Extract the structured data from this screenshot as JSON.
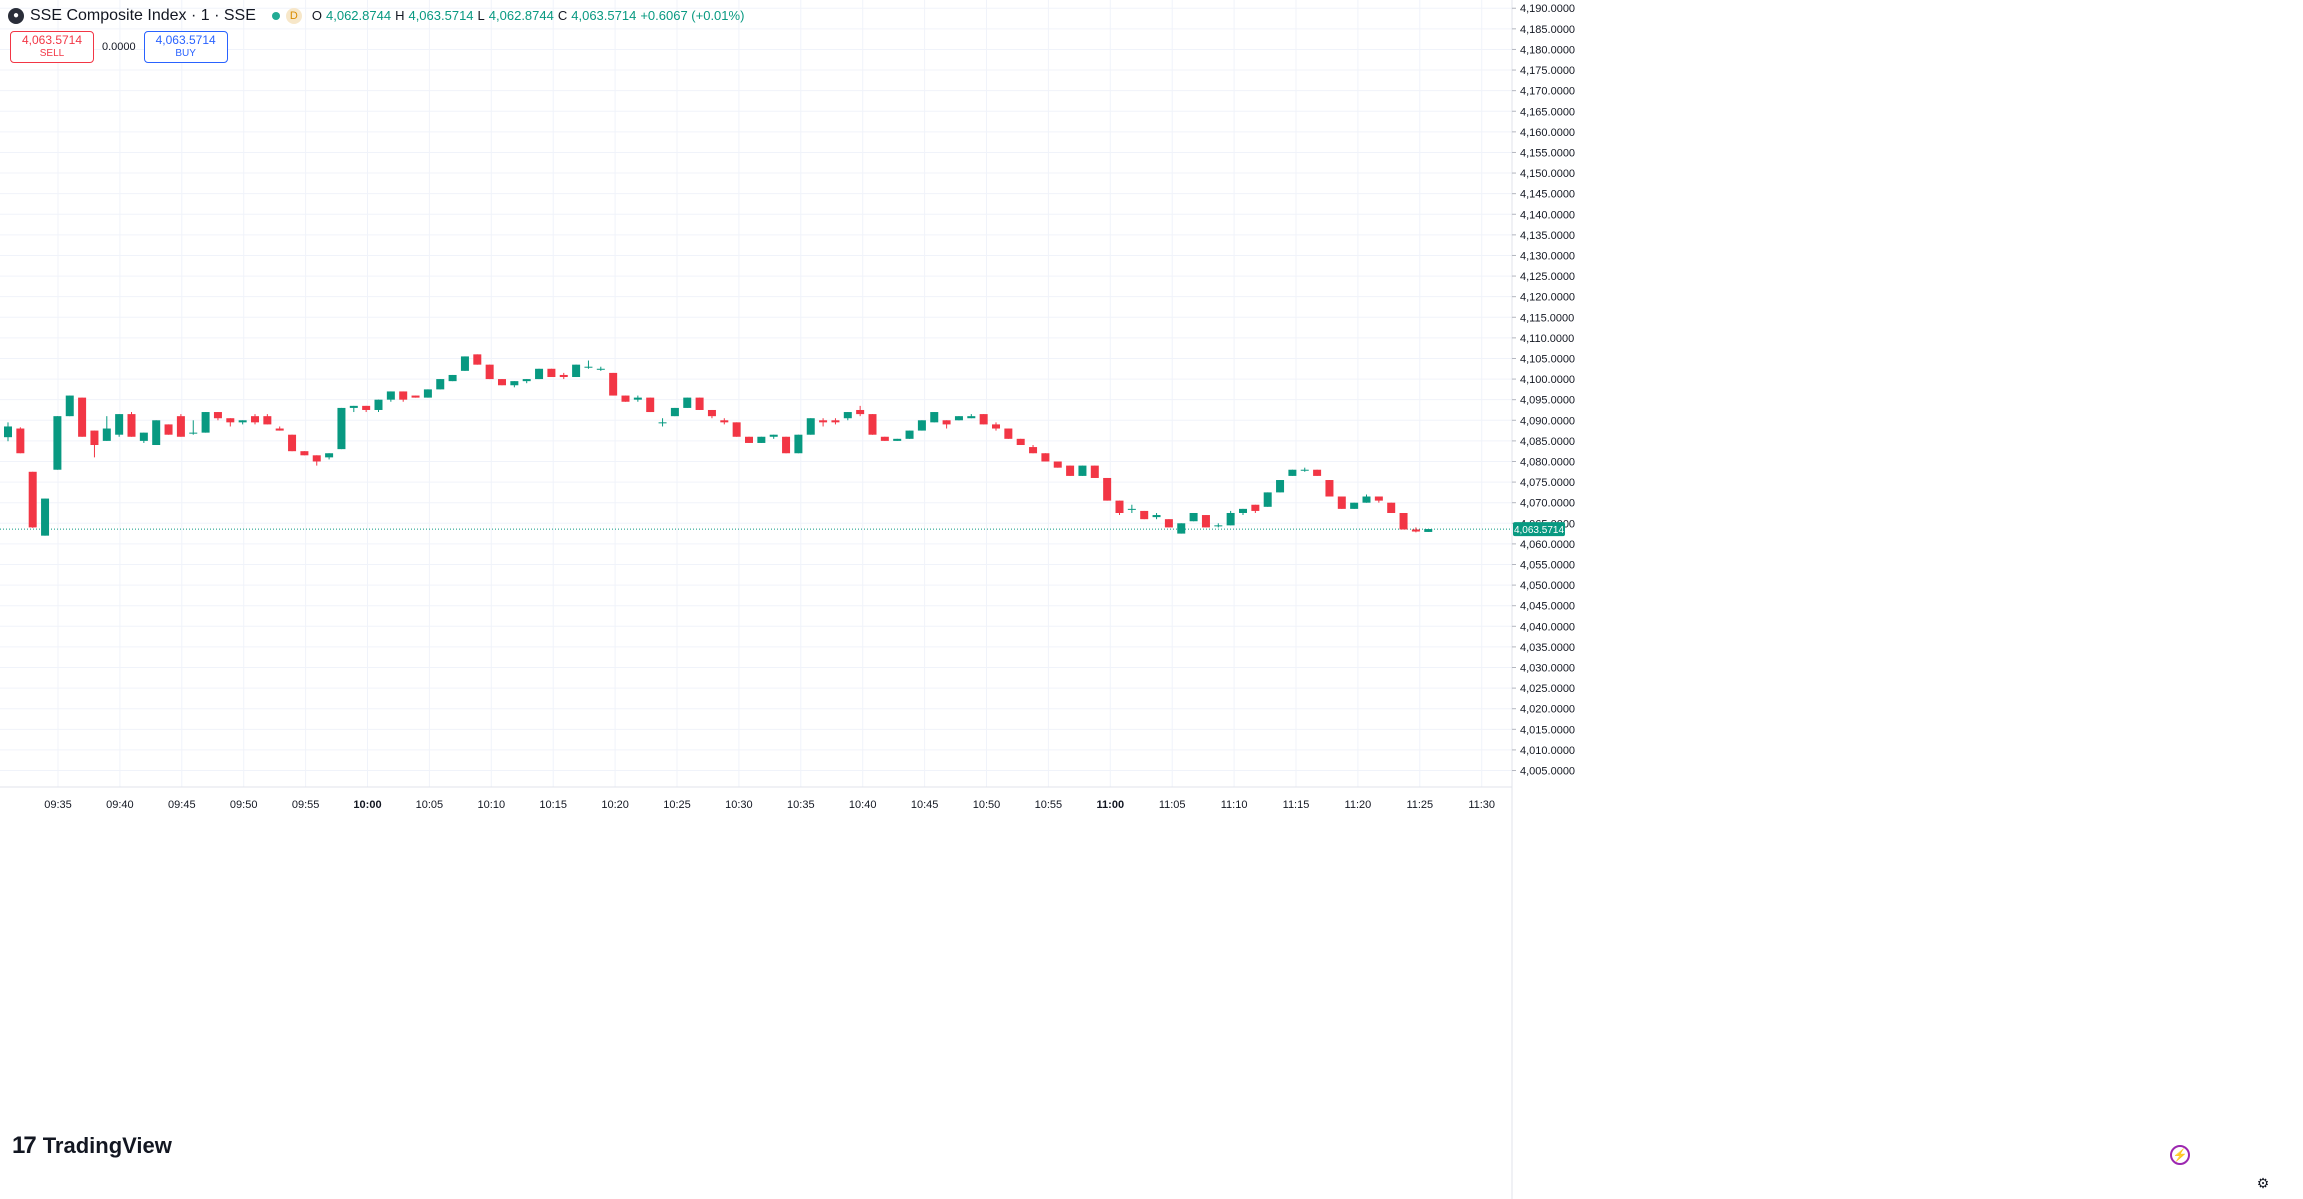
{
  "header": {
    "symbol_title": "SSE Composite Index · 1 · SSE",
    "logo_icon": "sse-logo-icon",
    "live_badge": "",
    "d_badge": "D",
    "ohlc": {
      "open_label": "O",
      "open_value": "4,062.8744",
      "high_label": "H",
      "high_value": "4,063.5714",
      "low_label": "L",
      "low_value": "4,062.8744",
      "close_label": "C",
      "close_value": "4,063.5714",
      "change": "+0.6067 (+0.01%)"
    }
  },
  "trade": {
    "sell_price": "4,063.5714",
    "sell_label": "SELL",
    "spread": "0.0000",
    "buy_price": "4,063.5714",
    "buy_label": "BUY"
  },
  "brand": {
    "name": "TradingView",
    "mark": "17"
  },
  "footer": {
    "bolt_icon": "⚡",
    "settings_icon": "⚙"
  },
  "colors": {
    "up": "#089981",
    "down": "#f23645",
    "grid": "#f0f3fa",
    "text": "#131722",
    "background": "#ffffff",
    "price_line": "#089981"
  },
  "chart_data": {
    "type": "candlestick",
    "title": "SSE Composite Index · 1 · SSE",
    "interval": "1",
    "xlabel": "",
    "ylabel": "",
    "ylim": [
      4001,
      4192
    ],
    "x_tick_labels": [
      "09:35",
      "09:40",
      "09:45",
      "09:50",
      "09:55",
      "10:00",
      "10:05",
      "10:10",
      "10:15",
      "10:20",
      "10:25",
      "10:30",
      "10:35",
      "10:40",
      "10:45",
      "10:50",
      "10:55",
      "11:00",
      "11:05",
      "11:10",
      "11:15",
      "11:20",
      "11:25",
      "11:30"
    ],
    "x_tick_bold": [
      "10:00",
      "11:00"
    ],
    "y_tick_labels": [
      "4,005.0000",
      "4,010.0000",
      "4,015.0000",
      "4,020.0000",
      "4,025.0000",
      "4,030.0000",
      "4,035.0000",
      "4,040.0000",
      "4,045.0000",
      "4,050.0000",
      "4,055.0000",
      "4,060.0000",
      "4,065.0000",
      "4,070.0000",
      "4,075.0000",
      "4,080.0000",
      "4,085.0000",
      "4,090.0000",
      "4,095.0000",
      "4,100.0000",
      "4,105.0000",
      "4,110.0000",
      "4,115.0000",
      "4,120.0000",
      "4,125.0000",
      "4,130.0000",
      "4,135.0000",
      "4,140.0000",
      "4,145.0000",
      "4,150.0000",
      "4,155.0000",
      "4,160.0000",
      "4,165.0000",
      "4,170.0000",
      "4,175.0000",
      "4,180.0000",
      "4,185.0000",
      "4,190.0000"
    ],
    "current_price": 4063.5714,
    "current_price_label": "4,063.5714",
    "grid": true,
    "candles": [
      {
        "o": 4085.9,
        "h": 4089.5,
        "l": 4084.9,
        "c": 4088.5
      },
      {
        "o": 4088.0,
        "h": 4088.3,
        "l": 4082.0,
        "c": 4082.0
      },
      {
        "o": 4077.5,
        "h": 4077.5,
        "l": 4063.9,
        "c": 4064.0
      },
      {
        "o": 4062.0,
        "h": 4071.0,
        "l": 4062.0,
        "c": 4071.0
      },
      {
        "o": 4078.0,
        "h": 4091.0,
        "l": 4078.0,
        "c": 4091.0
      },
      {
        "o": 4091.0,
        "h": 4096.0,
        "l": 4091.0,
        "c": 4096.0
      },
      {
        "o": 4095.5,
        "h": 4095.5,
        "l": 4086.0,
        "c": 4086.0
      },
      {
        "o": 4087.5,
        "h": 4087.5,
        "l": 4081.0,
        "c": 4084.0
      },
      {
        "o": 4085.0,
        "h": 4091.0,
        "l": 4085.0,
        "c": 4088.0
      },
      {
        "o": 4086.5,
        "h": 4091.5,
        "l": 4086.0,
        "c": 4091.5
      },
      {
        "o": 4091.5,
        "h": 4092.0,
        "l": 4086.0,
        "c": 4086.0
      },
      {
        "o": 4085.0,
        "h": 4087.0,
        "l": 4084.5,
        "c": 4087.0
      },
      {
        "o": 4084.0,
        "h": 4090.0,
        "l": 4084.0,
        "c": 4090.0
      },
      {
        "o": 4089.0,
        "h": 4089.0,
        "l": 4086.5,
        "c": 4086.5
      },
      {
        "o": 4091.0,
        "h": 4091.5,
        "l": 4086.0,
        "c": 4086.0
      },
      {
        "o": 4087.0,
        "h": 4090.0,
        "l": 4086.5,
        "c": 4087.0
      },
      {
        "o": 4087.0,
        "h": 4092.0,
        "l": 4087.0,
        "c": 4092.0
      },
      {
        "o": 4092.0,
        "h": 4092.0,
        "l": 4090.0,
        "c": 4090.5
      },
      {
        "o": 4090.5,
        "h": 4090.5,
        "l": 4088.5,
        "c": 4089.5
      },
      {
        "o": 4089.5,
        "h": 4090.0,
        "l": 4089.0,
        "c": 4090.0
      },
      {
        "o": 4091.0,
        "h": 4091.5,
        "l": 4089.0,
        "c": 4089.5
      },
      {
        "o": 4091.0,
        "h": 4091.5,
        "l": 4089.0,
        "c": 4089.0
      },
      {
        "o": 4088.0,
        "h": 4088.5,
        "l": 4087.5,
        "c": 4087.5
      },
      {
        "o": 4086.5,
        "h": 4086.5,
        "l": 4082.5,
        "c": 4082.5
      },
      {
        "o": 4082.5,
        "h": 4082.5,
        "l": 4081.5,
        "c": 4081.5
      },
      {
        "o": 4081.5,
        "h": 4081.5,
        "l": 4079.0,
        "c": 4080.0
      },
      {
        "o": 4081.0,
        "h": 4082.0,
        "l": 4080.5,
        "c": 4082.0
      },
      {
        "o": 4083.0,
        "h": 4093.0,
        "l": 4083.0,
        "c": 4093.0
      },
      {
        "o": 4093.0,
        "h": 4093.5,
        "l": 4092.0,
        "c": 4093.5
      },
      {
        "o": 4093.5,
        "h": 4093.5,
        "l": 4092.0,
        "c": 4092.5
      },
      {
        "o": 4092.5,
        "h": 4095.0,
        "l": 4092.0,
        "c": 4095.0
      },
      {
        "o": 4095.0,
        "h": 4097.0,
        "l": 4094.5,
        "c": 4097.0
      },
      {
        "o": 4097.0,
        "h": 4097.0,
        "l": 4094.5,
        "c": 4095.0
      },
      {
        "o": 4096.0,
        "h": 4096.0,
        "l": 4095.5,
        "c": 4095.5
      },
      {
        "o": 4095.5,
        "h": 4097.5,
        "l": 4095.5,
        "c": 4097.5
      },
      {
        "o": 4097.5,
        "h": 4100.0,
        "l": 4097.5,
        "c": 4100.0
      },
      {
        "o": 4099.5,
        "h": 4101.0,
        "l": 4099.5,
        "c": 4101.0
      },
      {
        "o": 4102.0,
        "h": 4105.5,
        "l": 4102.0,
        "c": 4105.5
      },
      {
        "o": 4106.0,
        "h": 4106.0,
        "l": 4103.5,
        "c": 4103.5
      },
      {
        "o": 4103.5,
        "h": 4103.5,
        "l": 4100.0,
        "c": 4100.0
      },
      {
        "o": 4100.0,
        "h": 4100.0,
        "l": 4098.5,
        "c": 4098.5
      },
      {
        "o": 4098.5,
        "h": 4099.5,
        "l": 4098.0,
        "c": 4099.5
      },
      {
        "o": 4099.5,
        "h": 4100.0,
        "l": 4099.0,
        "c": 4100.0
      },
      {
        "o": 4100.0,
        "h": 4102.5,
        "l": 4100.0,
        "c": 4102.5
      },
      {
        "o": 4102.5,
        "h": 4102.5,
        "l": 4100.5,
        "c": 4100.5
      },
      {
        "o": 4101.0,
        "h": 4101.5,
        "l": 4100.0,
        "c": 4100.5
      },
      {
        "o": 4100.5,
        "h": 4103.5,
        "l": 4100.5,
        "c": 4103.5
      },
      {
        "o": 4103.0,
        "h": 4104.5,
        "l": 4102.5,
        "c": 4103.0
      },
      {
        "o": 4102.5,
        "h": 4103.0,
        "l": 4102.0,
        "c": 4102.5
      },
      {
        "o": 4101.5,
        "h": 4101.5,
        "l": 4096.0,
        "c": 4096.0
      },
      {
        "o": 4096.0,
        "h": 4096.0,
        "l": 4094.5,
        "c": 4094.5
      },
      {
        "o": 4095.0,
        "h": 4096.0,
        "l": 4094.5,
        "c": 4095.5
      },
      {
        "o": 4095.5,
        "h": 4095.5,
        "l": 4092.0,
        "c": 4092.0
      },
      {
        "o": 4089.5,
        "h": 4090.5,
        "l": 4088.5,
        "c": 4089.5
      },
      {
        "o": 4091.0,
        "h": 4093.0,
        "l": 4091.0,
        "c": 4093.0
      },
      {
        "o": 4093.0,
        "h": 4095.5,
        "l": 4093.0,
        "c": 4095.5
      },
      {
        "o": 4095.5,
        "h": 4095.5,
        "l": 4092.5,
        "c": 4092.5
      },
      {
        "o": 4092.5,
        "h": 4092.5,
        "l": 4090.5,
        "c": 4091.0
      },
      {
        "o": 4090.0,
        "h": 4090.5,
        "l": 4089.0,
        "c": 4089.5
      },
      {
        "o": 4089.5,
        "h": 4089.5,
        "l": 4086.0,
        "c": 4086.0
      },
      {
        "o": 4086.0,
        "h": 4086.0,
        "l": 4084.5,
        "c": 4084.5
      },
      {
        "o": 4084.5,
        "h": 4086.0,
        "l": 4084.5,
        "c": 4086.0
      },
      {
        "o": 4086.0,
        "h": 4086.5,
        "l": 4085.5,
        "c": 4086.5
      },
      {
        "o": 4086.0,
        "h": 4086.0,
        "l": 4082.0,
        "c": 4082.0
      },
      {
        "o": 4082.0,
        "h": 4086.5,
        "l": 4082.0,
        "c": 4086.5
      },
      {
        "o": 4086.5,
        "h": 4090.5,
        "l": 4086.5,
        "c": 4090.5
      },
      {
        "o": 4090.0,
        "h": 4090.5,
        "l": 4088.5,
        "c": 4089.5
      },
      {
        "o": 4090.0,
        "h": 4090.5,
        "l": 4089.0,
        "c": 4089.5
      },
      {
        "o": 4090.5,
        "h": 4092.0,
        "l": 4090.0,
        "c": 4092.0
      },
      {
        "o": 4092.5,
        "h": 4093.5,
        "l": 4091.0,
        "c": 4091.5
      },
      {
        "o": 4091.5,
        "h": 4091.5,
        "l": 4086.5,
        "c": 4086.5
      },
      {
        "o": 4086.0,
        "h": 4086.0,
        "l": 4085.0,
        "c": 4085.0
      },
      {
        "o": 4085.0,
        "h": 4085.5,
        "l": 4085.0,
        "c": 4085.5
      },
      {
        "o": 4085.5,
        "h": 4087.5,
        "l": 4085.5,
        "c": 4087.5
      },
      {
        "o": 4087.5,
        "h": 4090.0,
        "l": 4087.5,
        "c": 4090.0
      },
      {
        "o": 4089.5,
        "h": 4092.0,
        "l": 4089.5,
        "c": 4092.0
      },
      {
        "o": 4090.0,
        "h": 4090.0,
        "l": 4088.0,
        "c": 4089.0
      },
      {
        "o": 4090.0,
        "h": 4091.0,
        "l": 4090.0,
        "c": 4091.0
      },
      {
        "o": 4090.5,
        "h": 4091.5,
        "l": 4090.5,
        "c": 4091.0
      },
      {
        "o": 4091.5,
        "h": 4091.5,
        "l": 4089.0,
        "c": 4089.0
      },
      {
        "o": 4089.0,
        "h": 4089.5,
        "l": 4087.5,
        "c": 4088.0
      },
      {
        "o": 4088.0,
        "h": 4088.0,
        "l": 4085.5,
        "c": 4085.5
      },
      {
        "o": 4085.5,
        "h": 4085.5,
        "l": 4084.0,
        "c": 4084.0
      },
      {
        "o": 4083.5,
        "h": 4084.0,
        "l": 4082.0,
        "c": 4082.0
      },
      {
        "o": 4082.0,
        "h": 4082.0,
        "l": 4080.0,
        "c": 4080.0
      },
      {
        "o": 4080.0,
        "h": 4080.0,
        "l": 4078.5,
        "c": 4078.5
      },
      {
        "o": 4079.0,
        "h": 4079.0,
        "l": 4076.5,
        "c": 4076.5
      },
      {
        "o": 4076.5,
        "h": 4079.0,
        "l": 4076.5,
        "c": 4079.0
      },
      {
        "o": 4079.0,
        "h": 4079.0,
        "l": 4076.0,
        "c": 4076.0
      },
      {
        "o": 4076.0,
        "h": 4076.0,
        "l": 4070.5,
        "c": 4070.5
      },
      {
        "o": 4070.5,
        "h": 4070.5,
        "l": 4067.0,
        "c": 4067.5
      },
      {
        "o": 4068.5,
        "h": 4069.5,
        "l": 4067.5,
        "c": 4068.5
      },
      {
        "o": 4068.0,
        "h": 4068.0,
        "l": 4066.0,
        "c": 4066.0
      },
      {
        "o": 4066.5,
        "h": 4067.5,
        "l": 4066.0,
        "c": 4067.0
      },
      {
        "o": 4066.0,
        "h": 4066.0,
        "l": 4064.0,
        "c": 4064.0
      },
      {
        "o": 4062.5,
        "h": 4065.0,
        "l": 4062.5,
        "c": 4065.0
      },
      {
        "o": 4065.5,
        "h": 4067.5,
        "l": 4065.5,
        "c": 4067.5
      },
      {
        "o": 4067.0,
        "h": 4067.0,
        "l": 4064.0,
        "c": 4064.0
      },
      {
        "o": 4064.5,
        "h": 4065.0,
        "l": 4064.0,
        "c": 4064.5
      },
      {
        "o": 4064.5,
        "h": 4068.0,
        "l": 4064.5,
        "c": 4067.5
      },
      {
        "o": 4067.5,
        "h": 4068.5,
        "l": 4067.0,
        "c": 4068.5
      },
      {
        "o": 4069.5,
        "h": 4069.5,
        "l": 4067.5,
        "c": 4068.0
      },
      {
        "o": 4069.0,
        "h": 4072.5,
        "l": 4069.0,
        "c": 4072.5
      },
      {
        "o": 4072.5,
        "h": 4075.5,
        "l": 4072.5,
        "c": 4075.5
      },
      {
        "o": 4076.5,
        "h": 4078.0,
        "l": 4076.5,
        "c": 4078.0
      },
      {
        "o": 4078.0,
        "h": 4078.5,
        "l": 4077.5,
        "c": 4078.0
      },
      {
        "o": 4078.0,
        "h": 4078.0,
        "l": 4076.5,
        "c": 4076.5
      },
      {
        "o": 4075.5,
        "h": 4075.5,
        "l": 4071.5,
        "c": 4071.5
      },
      {
        "o": 4071.5,
        "h": 4071.5,
        "l": 4068.5,
        "c": 4068.5
      },
      {
        "o": 4068.5,
        "h": 4070.0,
        "l": 4068.5,
        "c": 4070.0
      },
      {
        "o": 4070.0,
        "h": 4072.0,
        "l": 4070.0,
        "c": 4071.5
      },
      {
        "o": 4071.5,
        "h": 4071.5,
        "l": 4070.0,
        "c": 4070.5
      },
      {
        "o": 4070.0,
        "h": 4070.0,
        "l": 4067.5,
        "c": 4067.5
      },
      {
        "o": 4067.5,
        "h": 4067.5,
        "l": 4063.5,
        "c": 4063.5
      },
      {
        "o": 4063.5,
        "h": 4064.0,
        "l": 4062.8,
        "c": 4063.0
      },
      {
        "o": 4062.9,
        "h": 4063.6,
        "l": 4062.9,
        "c": 4063.6
      }
    ]
  }
}
